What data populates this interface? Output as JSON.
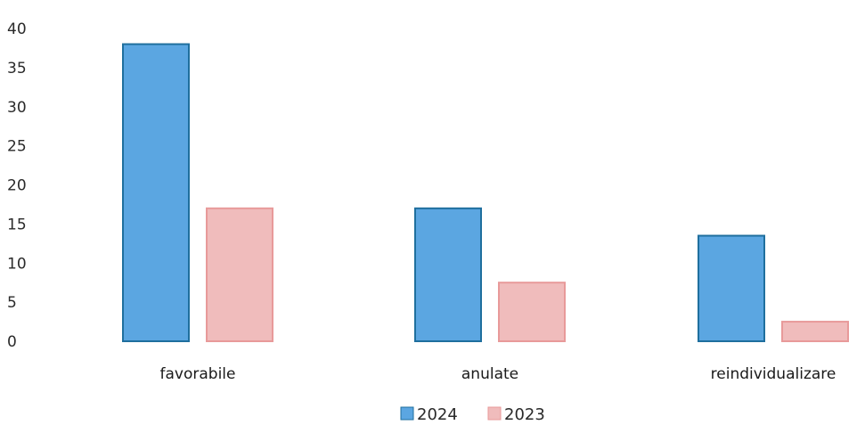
{
  "chart_data": {
    "type": "bar",
    "categories": [
      "favorabile",
      "anulate",
      "reindividualizare"
    ],
    "series": [
      {
        "name": "2024",
        "values": [
          38,
          17,
          13.5
        ]
      },
      {
        "name": "2023",
        "values": [
          17,
          7.5,
          2.5
        ]
      }
    ],
    "ylim": [
      0,
      40
    ],
    "yticks": [
      "0",
      "5",
      "10",
      "15",
      "20",
      "25",
      "30",
      "35",
      "40"
    ],
    "grid": false,
    "legend_position": "bottom",
    "colors": {
      "2024": {
        "fill": "#5ba6e1",
        "stroke": "#1f6f9e"
      },
      "2023": {
        "fill": "#f0bcbc",
        "stroke": "#e89a9a"
      }
    }
  }
}
